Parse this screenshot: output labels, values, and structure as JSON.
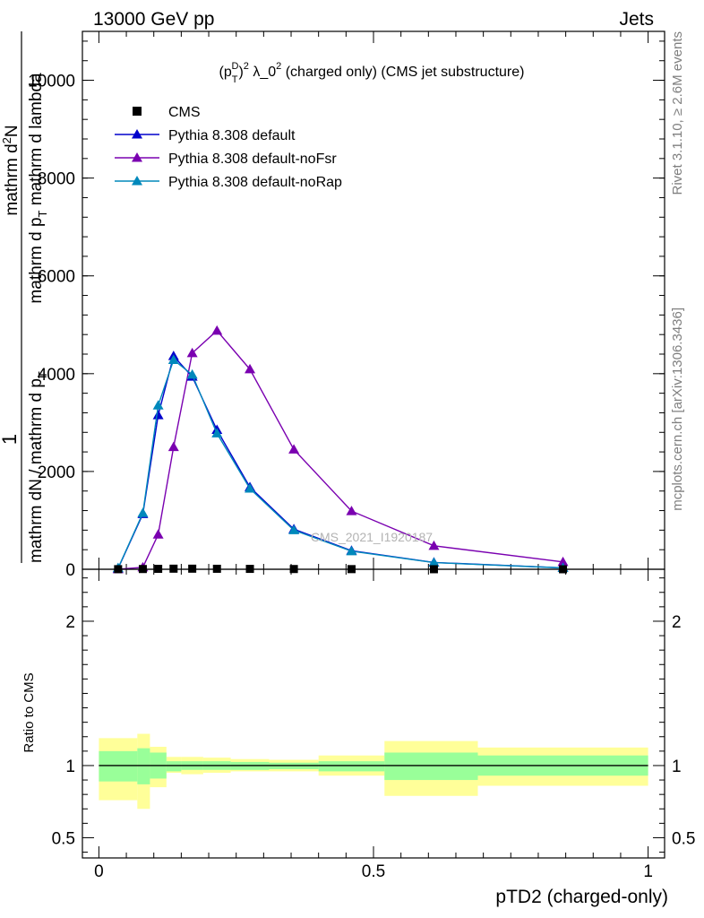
{
  "header": {
    "left": "13000 GeV pp",
    "right": "Jets"
  },
  "side_labels": {
    "rivet": "Rivet 3.1.10, ≥ 2.6M events",
    "mcplots": "mcplots.cern.ch [arXiv:1306.3436]"
  },
  "watermark": "CMS_2021_I1920187",
  "colors": {
    "data": "#000000",
    "default": "#0000cc",
    "noFsr": "#7a00b0",
    "noRap": "#0088bb",
    "band_outer": "#ffff99",
    "band_inner": "#99ff99"
  },
  "chart_data": [
    {
      "type": "line",
      "title": "(p_T^D)^2 λ_0^2 (charged only) (CMS jet substructure)",
      "title_parts": {
        "a": "(p",
        "b": "T",
        "c": "D",
        "d": ")",
        "e": "2",
        "f": " λ_0",
        "g": "2",
        "h": " (charged only) (CMS jet substructure)"
      },
      "ylabel_numerator": "mathrm d²N",
      "ylabel_numerator_parts": {
        "a": "mathrm d",
        "b": "2",
        "c": "N"
      },
      "ylabel_denominator": "mathrm d p_T mathrm d lambda",
      "ylabel_denominator_parts": {
        "a": "mathrm d p",
        "b": "T",
        "c": " mathrm d lambda"
      },
      "ylabel_prefix_numerator": "1",
      "ylabel_prefix_denominator": "mathrm dN / mathrm d p_T",
      "ylabel_prefix_denominator_parts": {
        "a": "mathrm dN / mathrm d p",
        "b": "T"
      },
      "xlim": [
        -0.03,
        1.03
      ],
      "ylim": [
        0,
        11000
      ],
      "yticks": [
        0,
        2000,
        4000,
        6000,
        8000,
        10000
      ],
      "ytick_labels": [
        "0",
        "2000",
        "4000",
        "6000",
        "8000",
        "10000"
      ],
      "legend_position": "top-left",
      "series": [
        {
          "name": "CMS",
          "key": "data",
          "marker": "square",
          "x": [
            0.035,
            0.08,
            0.108,
            0.136,
            0.17,
            0.215,
            0.275,
            0.355,
            0.46,
            0.61,
            0.845
          ],
          "y": [
            2,
            5,
            9,
            12,
            12,
            10,
            8,
            5,
            3,
            1,
            0.3
          ]
        },
        {
          "name": "Pythia 8.308 default",
          "key": "default",
          "marker": "triangle",
          "x": [
            0.035,
            0.08,
            0.108,
            0.136,
            0.17,
            0.215,
            0.275,
            0.355,
            0.46,
            0.61,
            0.845
          ],
          "y": [
            20,
            1130,
            3150,
            4360,
            3940,
            2850,
            1680,
            820,
            380,
            140,
            30
          ]
        },
        {
          "name": "Pythia 8.308 default-noFsr",
          "key": "noFsr",
          "marker": "triangle",
          "x": [
            0.035,
            0.08,
            0.108,
            0.136,
            0.17,
            0.215,
            0.275,
            0.355,
            0.46,
            0.61,
            0.845
          ],
          "y": [
            2,
            40,
            710,
            2500,
            4420,
            4880,
            4090,
            2450,
            1190,
            480,
            150
          ]
        },
        {
          "name": "Pythia 8.308 default-noRap",
          "key": "noRap",
          "marker": "triangle",
          "x": [
            0.035,
            0.08,
            0.108,
            0.136,
            0.17,
            0.215,
            0.275,
            0.355,
            0.46,
            0.61,
            0.845
          ],
          "y": [
            25,
            1150,
            3350,
            4280,
            3980,
            2780,
            1650,
            800,
            370,
            135,
            28
          ]
        }
      ]
    },
    {
      "type": "area",
      "xlabel": "pTD2 (charged-only)",
      "ylabel": "Ratio to CMS",
      "xlim": [
        -0.03,
        1.03
      ],
      "ylim": [
        0.36,
        2.36
      ],
      "xticks": [
        0,
        0.5,
        1
      ],
      "xtick_labels": [
        "0",
        "0.5",
        "1"
      ],
      "yticks": [
        0.5,
        1,
        2
      ],
      "ytick_labels": [
        "0.5",
        "1",
        "2"
      ],
      "reference_line": 1,
      "bins": [
        {
          "x0": 0.0,
          "x1": 0.07,
          "inner": [
            0.89,
            1.1
          ],
          "outer": [
            0.76,
            1.19
          ]
        },
        {
          "x0": 0.07,
          "x1": 0.093,
          "inner": [
            0.87,
            1.12
          ],
          "outer": [
            0.7,
            1.22
          ]
        },
        {
          "x0": 0.093,
          "x1": 0.123,
          "inner": [
            0.91,
            1.09
          ],
          "outer": [
            0.85,
            1.13
          ]
        },
        {
          "x0": 0.123,
          "x1": 0.15,
          "inner": [
            0.96,
            1.03
          ],
          "outer": [
            0.95,
            1.06
          ]
        },
        {
          "x0": 0.15,
          "x1": 0.19,
          "inner": [
            0.97,
            1.03
          ],
          "outer": [
            0.94,
            1.06
          ]
        },
        {
          "x0": 0.19,
          "x1": 0.24,
          "inner": [
            0.97,
            1.03
          ],
          "outer": [
            0.95,
            1.055
          ]
        },
        {
          "x0": 0.24,
          "x1": 0.31,
          "inner": [
            0.97,
            1.025
          ],
          "outer": [
            0.96,
            1.045
          ]
        },
        {
          "x0": 0.31,
          "x1": 0.4,
          "inner": [
            0.975,
            1.02
          ],
          "outer": [
            0.96,
            1.04
          ]
        },
        {
          "x0": 0.4,
          "x1": 0.52,
          "inner": [
            0.96,
            1.03
          ],
          "outer": [
            0.93,
            1.07
          ]
        },
        {
          "x0": 0.52,
          "x1": 0.69,
          "inner": [
            0.9,
            1.09
          ],
          "outer": [
            0.79,
            1.17
          ]
        },
        {
          "x0": 0.69,
          "x1": 1.0,
          "inner": [
            0.93,
            1.07
          ],
          "outer": [
            0.86,
            1.125
          ]
        }
      ]
    }
  ]
}
